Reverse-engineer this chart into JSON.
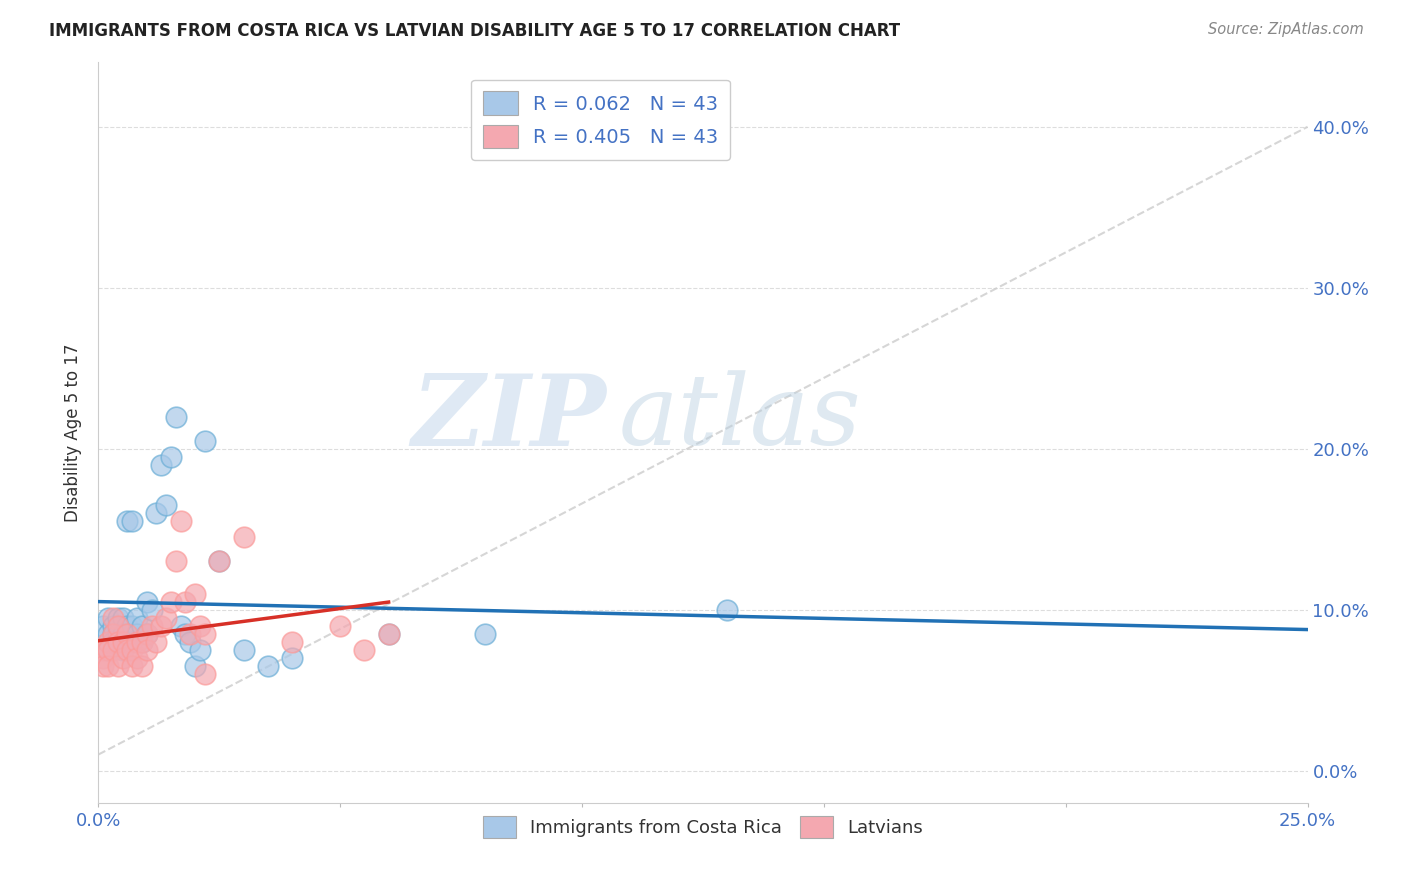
{
  "title": "IMMIGRANTS FROM COSTA RICA VS LATVIAN DISABILITY AGE 5 TO 17 CORRELATION CHART",
  "source": "Source: ZipAtlas.com",
  "ylabel": "Disability Age 5 to 17",
  "xlim": [
    0.0,
    0.25
  ],
  "ylim": [
    -0.02,
    0.44
  ],
  "x_ticks": [
    0.0,
    0.05,
    0.1,
    0.15,
    0.2,
    0.25
  ],
  "x_tick_labels": [
    "0.0%",
    "",
    "",
    "",
    "",
    "25.0%"
  ],
  "y_ticks": [
    0.0,
    0.1,
    0.2,
    0.3,
    0.4
  ],
  "y_tick_labels_right": [
    "0.0%",
    "10.0%",
    "20.0%",
    "30.0%",
    "40.0%"
  ],
  "blue_color": "#a8c8e8",
  "pink_color": "#f4a8b0",
  "blue_edge_color": "#6baed6",
  "pink_edge_color": "#fb9a99",
  "blue_line_color": "#2171b5",
  "pink_line_color": "#d73027",
  "legend_blue_label": "R = 0.062   N = 43",
  "legend_pink_label": "R = 0.405   N = 43",
  "legend_xlabel": "Immigrants from Costa Rica",
  "legend_ylabel": "Latvians",
  "watermark_zip": "ZIP",
  "watermark_atlas": "atlas",
  "blue_scatter_x": [
    0.001,
    0.002,
    0.002,
    0.002,
    0.003,
    0.003,
    0.003,
    0.004,
    0.004,
    0.004,
    0.005,
    0.005,
    0.005,
    0.006,
    0.006,
    0.007,
    0.007,
    0.007,
    0.008,
    0.008,
    0.009,
    0.009,
    0.01,
    0.01,
    0.011,
    0.012,
    0.013,
    0.014,
    0.015,
    0.016,
    0.017,
    0.018,
    0.019,
    0.02,
    0.021,
    0.022,
    0.025,
    0.03,
    0.035,
    0.04,
    0.06,
    0.08,
    0.13
  ],
  "blue_scatter_y": [
    0.09,
    0.095,
    0.085,
    0.075,
    0.09,
    0.085,
    0.08,
    0.095,
    0.085,
    0.08,
    0.095,
    0.085,
    0.075,
    0.155,
    0.09,
    0.155,
    0.09,
    0.08,
    0.095,
    0.085,
    0.09,
    0.08,
    0.105,
    0.085,
    0.1,
    0.16,
    0.19,
    0.165,
    0.195,
    0.22,
    0.09,
    0.085,
    0.08,
    0.065,
    0.075,
    0.205,
    0.13,
    0.075,
    0.065,
    0.07,
    0.085,
    0.085,
    0.1
  ],
  "pink_scatter_x": [
    0.001,
    0.001,
    0.001,
    0.002,
    0.002,
    0.002,
    0.003,
    0.003,
    0.003,
    0.004,
    0.004,
    0.004,
    0.005,
    0.005,
    0.006,
    0.006,
    0.007,
    0.007,
    0.008,
    0.008,
    0.009,
    0.009,
    0.01,
    0.01,
    0.011,
    0.012,
    0.013,
    0.014,
    0.015,
    0.016,
    0.017,
    0.018,
    0.019,
    0.02,
    0.021,
    0.022,
    0.025,
    0.03,
    0.04,
    0.05,
    0.055,
    0.06,
    0.022
  ],
  "pink_scatter_y": [
    0.075,
    0.07,
    0.065,
    0.08,
    0.075,
    0.065,
    0.095,
    0.085,
    0.075,
    0.09,
    0.08,
    0.065,
    0.08,
    0.07,
    0.085,
    0.075,
    0.075,
    0.065,
    0.08,
    0.07,
    0.08,
    0.065,
    0.085,
    0.075,
    0.09,
    0.08,
    0.09,
    0.095,
    0.105,
    0.13,
    0.155,
    0.105,
    0.085,
    0.11,
    0.09,
    0.085,
    0.13,
    0.145,
    0.08,
    0.09,
    0.075,
    0.085,
    0.06
  ],
  "grid_color": "#dddddd",
  "diag_color": "#cccccc"
}
